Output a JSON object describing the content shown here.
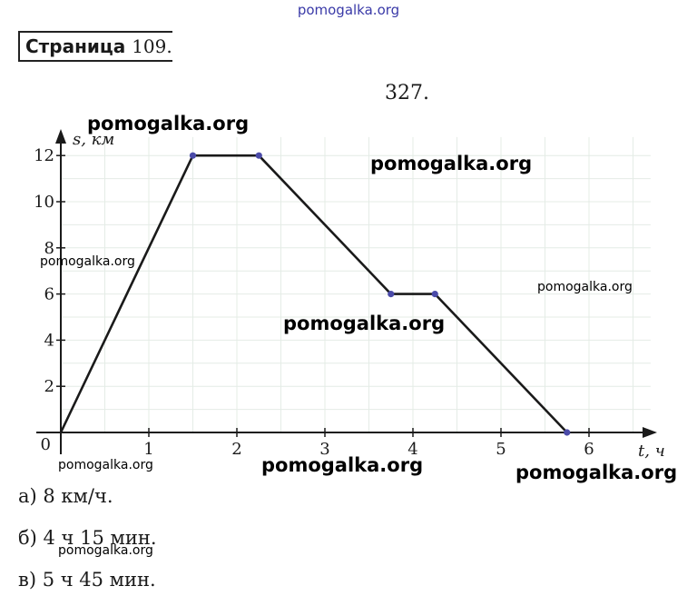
{
  "header": {
    "site": "pomogalka.org"
  },
  "page_label": {
    "word": "Страница",
    "number": "109."
  },
  "problem_number": "327.",
  "watermarks": [
    "pomogalka.org",
    "pomogalka.org",
    "pomogalka.org",
    "pomogalka.org",
    "pomogalka.org",
    "pomogalka.org",
    "pomogalka.org",
    "pomogalka.org",
    "pomogalka.org"
  ],
  "chart_data": {
    "type": "line",
    "xlabel": "t, ч",
    "ylabel": "s, км",
    "xlim": [
      0,
      6.7
    ],
    "ylim": [
      0,
      12.8
    ],
    "x_ticks": [
      1,
      2,
      3,
      4,
      5,
      6
    ],
    "y_ticks": [
      2,
      4,
      6,
      8,
      10,
      12
    ],
    "origin_label": "0",
    "grid": true,
    "series": [
      {
        "x": [
          0,
          1.5,
          2.25,
          3.75,
          4.25,
          5.75
        ],
        "y": [
          0,
          12,
          12,
          6,
          6,
          0
        ]
      }
    ],
    "colors": {
      "line": "#1a1a1a",
      "points": "#4a4aa8",
      "grid": "#e4ece6"
    }
  },
  "answers": {
    "a": "а) 8 км/ч.",
    "b": "б) 4 ч 15 мин.",
    "c": "в) 5 ч 45 мин."
  }
}
